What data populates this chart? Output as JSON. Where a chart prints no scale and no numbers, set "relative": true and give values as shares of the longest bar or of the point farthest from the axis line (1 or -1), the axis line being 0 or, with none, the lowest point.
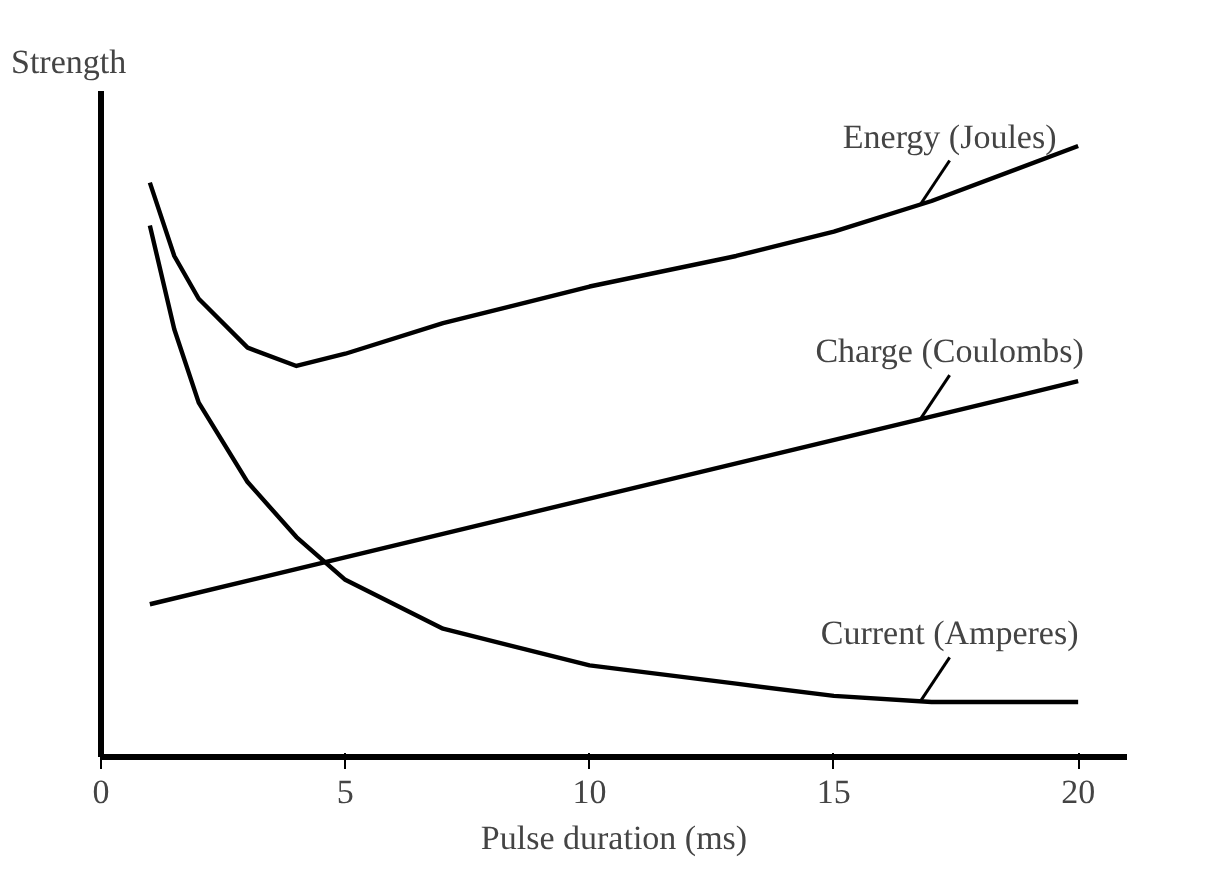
{
  "chart_data": {
    "type": "line",
    "relative": true,
    "xlabel": "Pulse duration (ms)",
    "ylabel": "Strength",
    "xlim": [
      0,
      21
    ],
    "xticks": [
      0,
      5,
      10,
      15,
      20
    ],
    "grid": false,
    "legend": false,
    "line_style": "solid",
    "series": [
      {
        "name": "Energy (Joules)",
        "color": "#000000",
        "x": [
          1,
          1.5,
          2,
          3,
          4,
          5,
          7,
          10,
          13,
          15,
          17,
          20
        ],
        "values": [
          0.94,
          0.82,
          0.75,
          0.67,
          0.64,
          0.66,
          0.71,
          0.77,
          0.82,
          0.86,
          0.91,
          1.0
        ]
      },
      {
        "name": "Charge (Coulombs)",
        "color": "#000000",
        "x": [
          1,
          20
        ],
        "values": [
          0.25,
          0.615
        ]
      },
      {
        "name": "Current (Amperes)",
        "color": "#000000",
        "x": [
          1,
          1.5,
          2,
          3,
          4,
          5,
          7,
          10,
          13,
          15,
          17,
          20
        ],
        "values": [
          0.87,
          0.7,
          0.58,
          0.45,
          0.36,
          0.29,
          0.21,
          0.15,
          0.12,
          0.1,
          0.09,
          0.09
        ]
      }
    ]
  }
}
